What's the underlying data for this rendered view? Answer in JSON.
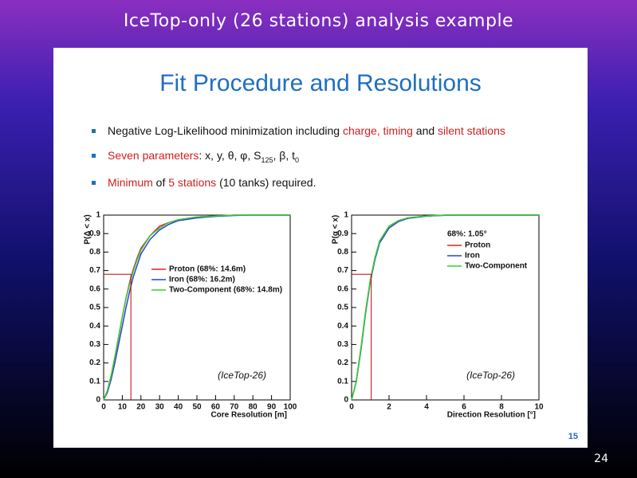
{
  "header": {
    "title": "IceTop-only (26 stations) analysis example",
    "slide_number": "24"
  },
  "slide": {
    "title": "Fit Procedure and Resolutions",
    "page": "15",
    "bullets": [
      [
        {
          "text": "Negative Log-Likelihood minimization including ",
          "style": "plain"
        },
        {
          "text": "charge, timing",
          "style": "red"
        },
        {
          "text": " and ",
          "style": "plain"
        },
        {
          "text": "silent stations",
          "style": "red"
        }
      ],
      [
        {
          "text": "Seven parameters",
          "style": "red"
        },
        {
          "text": ": x, y, θ, φ, S",
          "style": "plain"
        },
        {
          "text": "125",
          "style": "sub"
        },
        {
          "text": ", β, t",
          "style": "plain"
        },
        {
          "text": "0",
          "style": "sub"
        }
      ],
      [
        {
          "text": "Minimum",
          "style": "red"
        },
        {
          "text": " of ",
          "style": "plain"
        },
        {
          "text": "5 stations",
          "style": "red"
        },
        {
          "text": " (10 tanks) required.",
          "style": "plain"
        }
      ]
    ]
  },
  "chart_data": [
    {
      "type": "line",
      "xlabel": "Core Resolution [m]",
      "ylabel": "P(Δ < x)",
      "annotation": "(IceTop-26)",
      "legend": "center-right",
      "x": [
        0,
        2,
        4,
        6,
        8,
        10,
        12,
        14,
        16,
        18,
        20,
        25,
        30,
        35,
        40,
        50,
        60,
        70,
        80,
        90,
        100
      ],
      "series": [
        {
          "name": "Proton (68%: 14.6m)",
          "color": "#e02020",
          "values": [
            0,
            0.05,
            0.13,
            0.23,
            0.34,
            0.45,
            0.55,
            0.64,
            0.71,
            0.77,
            0.82,
            0.89,
            0.94,
            0.96,
            0.975,
            0.99,
            0.995,
            1,
            1,
            1,
            1
          ]
        },
        {
          "name": "Iron (68%: 16.2m)",
          "color": "#3040d0",
          "values": [
            0,
            0.04,
            0.11,
            0.2,
            0.3,
            0.4,
            0.5,
            0.59,
            0.67,
            0.73,
            0.79,
            0.87,
            0.92,
            0.95,
            0.97,
            0.985,
            0.993,
            0.998,
            1,
            1,
            1
          ]
        },
        {
          "name": "Two-Component (68%: 14.8m)",
          "color": "#30d030",
          "values": [
            0,
            0.05,
            0.13,
            0.23,
            0.34,
            0.45,
            0.55,
            0.63,
            0.7,
            0.76,
            0.81,
            0.89,
            0.93,
            0.96,
            0.975,
            0.99,
            0.995,
            1,
            1,
            1,
            1
          ]
        }
      ],
      "marker": {
        "x": 14.6,
        "y": 0.68
      },
      "xlim": [
        0,
        100
      ],
      "xticks": [
        0,
        10,
        20,
        30,
        40,
        50,
        60,
        70,
        80,
        90,
        100
      ],
      "ylim": [
        0,
        1
      ],
      "yticks": [
        0,
        0.1,
        0.2,
        0.3,
        0.4,
        0.5,
        0.6,
        0.7,
        0.8,
        0.9,
        1
      ]
    },
    {
      "type": "line",
      "xlabel": "Direction Resolution [°]",
      "ylabel": "P(α < x)",
      "annotation": "(IceTop-26)",
      "note": "68%: 1.05°",
      "legend": "top-center",
      "x": [
        0,
        0.25,
        0.5,
        0.75,
        1,
        1.25,
        1.5,
        2,
        2.5,
        3,
        4,
        5,
        6,
        8,
        10
      ],
      "series": [
        {
          "name": "Proton",
          "color": "#e02020",
          "values": [
            0,
            0.1,
            0.28,
            0.48,
            0.65,
            0.77,
            0.86,
            0.94,
            0.97,
            0.985,
            0.995,
            1,
            1,
            1,
            1
          ]
        },
        {
          "name": "Iron",
          "color": "#3040d0",
          "values": [
            0,
            0.1,
            0.27,
            0.47,
            0.64,
            0.76,
            0.85,
            0.93,
            0.965,
            0.982,
            0.994,
            0.999,
            1,
            1,
            1
          ]
        },
        {
          "name": "Two-Component",
          "color": "#30d030",
          "values": [
            0,
            0.1,
            0.28,
            0.48,
            0.65,
            0.77,
            0.86,
            0.94,
            0.97,
            0.985,
            0.995,
            1,
            1,
            1,
            1
          ]
        }
      ],
      "marker": {
        "x": 1.05,
        "y": 0.68
      },
      "xlim": [
        0,
        10
      ],
      "xticks": [
        0,
        2,
        4,
        6,
        8,
        10
      ],
      "ylim": [
        0,
        1
      ],
      "yticks": [
        0,
        0.1,
        0.2,
        0.3,
        0.4,
        0.5,
        0.6,
        0.7,
        0.8,
        0.9,
        1
      ]
    }
  ]
}
